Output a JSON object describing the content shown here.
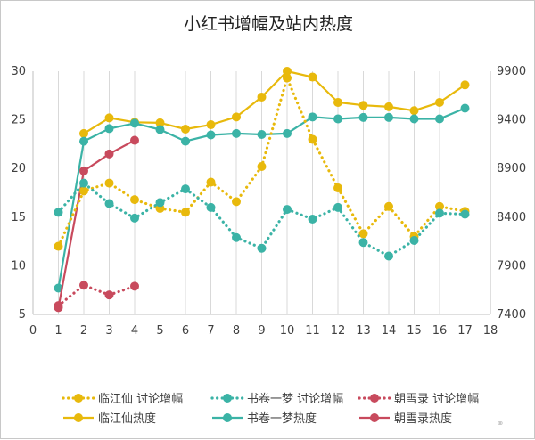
{
  "chart_data": {
    "type": "line",
    "title": "小红书增幅及站内热度",
    "xlabel": "",
    "ylabel": "",
    "x": [
      0,
      1,
      2,
      3,
      4,
      5,
      6,
      7,
      8,
      9,
      10,
      11,
      12,
      13,
      14,
      15,
      16,
      17,
      18
    ],
    "xlim": [
      0,
      18
    ],
    "ylim": [
      5,
      30
    ],
    "y2lim": [
      7400,
      9900
    ],
    "y_ticks": [
      5,
      10,
      15,
      20,
      25,
      30
    ],
    "y2_ticks": [
      7400,
      7900,
      8400,
      8900,
      9400,
      9900
    ],
    "series": [
      {
        "name": "临江仙 讨论增幅",
        "axis": "left",
        "style": "dotted",
        "color": "#E8B90C",
        "x": [
          1,
          2,
          3,
          4,
          5,
          6,
          7,
          8,
          9,
          10,
          11,
          12,
          13,
          14,
          15,
          16,
          17
        ],
        "values": [
          12.0,
          17.7,
          18.5,
          16.8,
          15.9,
          15.5,
          18.6,
          16.6,
          20.2,
          29.3,
          23.0,
          18.0,
          13.3,
          16.1,
          13.0,
          16.1,
          15.6
        ]
      },
      {
        "name": "书卷一梦 讨论增幅",
        "axis": "left",
        "style": "dotted",
        "color": "#3BB3A6",
        "x": [
          1,
          2,
          3,
          4,
          5,
          6,
          7,
          8,
          9,
          10,
          11,
          12,
          13,
          14,
          15,
          16,
          17
        ],
        "values": [
          15.5,
          18.5,
          16.4,
          14.9,
          16.5,
          17.9,
          16.0,
          12.9,
          11.8,
          15.8,
          14.8,
          16.0,
          12.4,
          11.0,
          12.6,
          15.4,
          15.3
        ]
      },
      {
        "name": "朝雪录 讨论增幅",
        "axis": "left",
        "style": "dotted",
        "color": "#C84A5D",
        "x": [
          1,
          2,
          3,
          4
        ],
        "values": [
          5.9,
          8.0,
          7.0,
          7.9
        ]
      },
      {
        "name": "临江仙热度",
        "axis": "right",
        "style": "solid",
        "color": "#E8B90C",
        "x": [
          2,
          3,
          4,
          5,
          6,
          7,
          8,
          9,
          10,
          11,
          12,
          13,
          14,
          15,
          16,
          17
        ],
        "values": [
          9260,
          9420,
          9375,
          9370,
          9305,
          9350,
          9430,
          9635,
          9900,
          9840,
          9580,
          9550,
          9535,
          9495,
          9580,
          9760
        ]
      },
      {
        "name": "书卷一梦热度",
        "axis": "right",
        "style": "solid",
        "color": "#3BB3A6",
        "x": [
          1,
          2,
          3,
          4,
          5,
          6,
          7,
          8,
          9,
          10,
          11,
          12,
          13,
          14,
          15,
          16,
          17
        ],
        "values": [
          7670,
          9180,
          9310,
          9365,
          9300,
          9180,
          9245,
          9260,
          9250,
          9260,
          9430,
          9410,
          9425,
          9425,
          9410,
          9410,
          9520
        ]
      },
      {
        "name": "朝雪录热度",
        "axis": "right",
        "style": "solid",
        "color": "#C84A5D",
        "x": [
          1,
          2,
          3,
          4
        ],
        "values": [
          7470,
          8875,
          9050,
          9190
        ]
      }
    ],
    "legend_position": "bottom",
    "grid": "vertical"
  },
  "watermark": "⚭",
  "colors": {
    "gold": "#E8B90C",
    "teal": "#3BB3A6",
    "red": "#C84A5D",
    "grid": "#d9d9d9",
    "axis": "#bfbfbf"
  }
}
